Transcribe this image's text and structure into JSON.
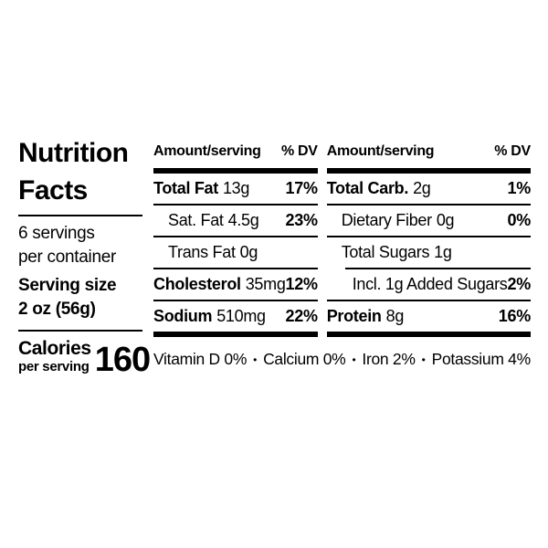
{
  "title": "Nutrition\nFacts",
  "servings_per_container": "6 servings\nper container",
  "serving_size": "Serving size\n2 oz (56g)",
  "calories": {
    "label": "Calories",
    "sublabel": "per serving",
    "value": "160"
  },
  "columns": [
    {
      "header": {
        "amount": "Amount/serving",
        "dv": "% DV"
      },
      "rows": [
        {
          "name": "Total Fat",
          "amount": "13g",
          "dv": "17%"
        },
        {
          "name": "Sat. Fat",
          "amount": "4.5g",
          "dv": "23%"
        },
        {
          "name": "Trans Fat",
          "amount": "0g",
          "dv": ""
        },
        {
          "name": "Cholesterol",
          "amount": "35mg",
          "dv": "12%"
        },
        {
          "name": "Sodium",
          "amount": "510mg",
          "dv": "22%"
        }
      ]
    },
    {
      "header": {
        "amount": "Amount/serving",
        "dv": "% DV"
      },
      "rows": [
        {
          "name": "Total Carb.",
          "amount": "2g",
          "dv": "1%"
        },
        {
          "name": "Dietary Fiber",
          "amount": "0g",
          "dv": "0%"
        },
        {
          "name": "Total Sugars",
          "amount": "1g",
          "dv": ""
        },
        {
          "name": "Incl. 1g Added Sugars",
          "amount": "",
          "dv": "2%"
        },
        {
          "name": "Protein",
          "amount": "8g",
          "dv": "16%"
        }
      ]
    }
  ],
  "micronutrients": [
    {
      "label": "Vitamin D 0%"
    },
    {
      "label": "Calcium 0%"
    },
    {
      "label": "Iron 2%"
    },
    {
      "label": "Potassium 4%"
    }
  ],
  "separator": "•",
  "colors": {
    "text": "#000000",
    "background": "#ffffff"
  }
}
